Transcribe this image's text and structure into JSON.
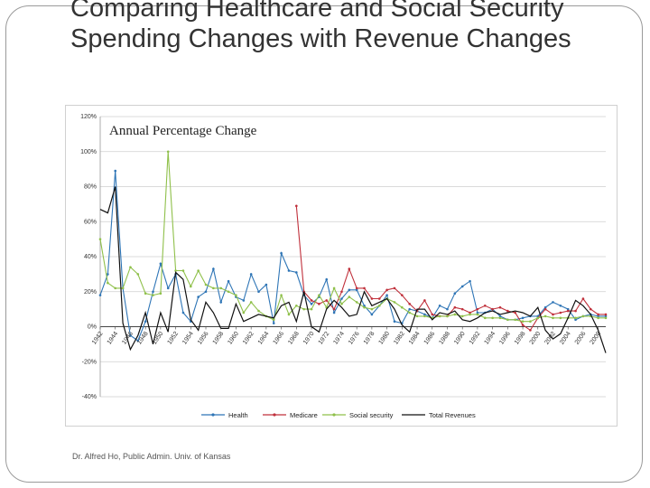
{
  "slide": {
    "title": "Comparing Healthcare and Social Security Spending Changes with Revenue Changes",
    "footer": "Dr. Alfred Ho, Public Admin. Univ. of Kansas"
  },
  "chart_data": {
    "type": "line",
    "title": "Annual Percentage Change",
    "xlabel": "",
    "ylabel": "",
    "ylim": [
      -40,
      120
    ],
    "yticks": [
      120,
      100,
      80,
      60,
      40,
      20,
      0,
      -20,
      -40
    ],
    "ytick_labels": [
      "120%",
      "100%",
      "80%",
      "60%",
      "40%",
      "20%",
      "0%",
      "-20%",
      "-40%"
    ],
    "xrange": [
      1942,
      2009
    ],
    "xtick_labels": [
      "1942",
      "1944",
      "1946",
      "1948",
      "1950",
      "1952",
      "1954",
      "1956",
      "1958",
      "1960",
      "1962",
      "1964",
      "1966",
      "1968",
      "1970",
      "1972",
      "1974",
      "1976",
      "1978",
      "1980",
      "1982",
      "1984",
      "1986",
      "1988",
      "1990",
      "1992",
      "1994",
      "1996",
      "1998",
      "2000",
      "2002",
      "2004",
      "2006",
      "2008"
    ],
    "legend_position": "bottom",
    "grid": true,
    "series": [
      {
        "name": "Health",
        "color": "#2e75b6",
        "points": [
          [
            1942,
            18
          ],
          [
            1943,
            30
          ],
          [
            1944,
            89
          ],
          [
            1945,
            22
          ],
          [
            1946,
            -5
          ],
          [
            1947,
            -8
          ],
          [
            1948,
            3
          ],
          [
            1949,
            20
          ],
          [
            1950,
            36
          ],
          [
            1951,
            22
          ],
          [
            1952,
            30
          ],
          [
            1953,
            8
          ],
          [
            1954,
            3
          ],
          [
            1955,
            17
          ],
          [
            1956,
            20
          ],
          [
            1957,
            33
          ],
          [
            1958,
            14
          ],
          [
            1959,
            26
          ],
          [
            1960,
            17
          ],
          [
            1961,
            15
          ],
          [
            1962,
            30
          ],
          [
            1963,
            20
          ],
          [
            1964,
            24
          ],
          [
            1965,
            2
          ],
          [
            1966,
            42
          ],
          [
            1967,
            32
          ],
          [
            1968,
            31
          ],
          [
            1969,
            18
          ],
          [
            1970,
            13
          ],
          [
            1971,
            17
          ],
          [
            1972,
            27
          ],
          [
            1973,
            8
          ],
          [
            1974,
            16
          ],
          [
            1975,
            21
          ],
          [
            1976,
            21
          ],
          [
            1977,
            12
          ],
          [
            1978,
            7
          ],
          [
            1979,
            12
          ],
          [
            1980,
            18
          ],
          [
            1981,
            3
          ],
          [
            1982,
            2
          ],
          [
            1983,
            10
          ],
          [
            1984,
            9
          ],
          [
            1985,
            7
          ],
          [
            1986,
            5
          ],
          [
            1987,
            12
          ],
          [
            1988,
            10
          ],
          [
            1989,
            19
          ],
          [
            1990,
            23
          ],
          [
            1991,
            26
          ],
          [
            1992,
            8
          ],
          [
            1993,
            8
          ],
          [
            1994,
            10
          ],
          [
            1995,
            6
          ],
          [
            1996,
            4
          ],
          [
            1997,
            4
          ],
          [
            1998,
            5
          ],
          [
            1999,
            6
          ],
          [
            2000,
            6
          ],
          [
            2001,
            11
          ],
          [
            2002,
            14
          ],
          [
            2003,
            12
          ],
          [
            2004,
            10
          ],
          [
            2005,
            4
          ],
          [
            2006,
            6
          ],
          [
            2007,
            7
          ],
          [
            2008,
            6
          ],
          [
            2009,
            6
          ]
        ]
      },
      {
        "name": "Medicare",
        "color": "#c0303b",
        "points": [
          [
            1968,
            69
          ],
          [
            1969,
            20
          ],
          [
            1970,
            15
          ],
          [
            1971,
            13
          ],
          [
            1972,
            15
          ],
          [
            1973,
            10
          ],
          [
            1974,
            20
          ],
          [
            1975,
            33
          ],
          [
            1976,
            22
          ],
          [
            1977,
            22
          ],
          [
            1978,
            16
          ],
          [
            1979,
            16
          ],
          [
            1980,
            21
          ],
          [
            1981,
            22
          ],
          [
            1982,
            18
          ],
          [
            1983,
            13
          ],
          [
            1984,
            9
          ],
          [
            1985,
            15
          ],
          [
            1986,
            7
          ],
          [
            1987,
            6
          ],
          [
            1988,
            6
          ],
          [
            1989,
            11
          ],
          [
            1990,
            10
          ],
          [
            1991,
            8
          ],
          [
            1992,
            10
          ],
          [
            1993,
            12
          ],
          [
            1994,
            10
          ],
          [
            1995,
            11
          ],
          [
            1996,
            9
          ],
          [
            1997,
            8
          ],
          [
            1998,
            1
          ],
          [
            1999,
            -2
          ],
          [
            2000,
            5
          ],
          [
            2001,
            10
          ],
          [
            2002,
            7
          ],
          [
            2003,
            8
          ],
          [
            2004,
            9
          ],
          [
            2005,
            9
          ],
          [
            2006,
            16
          ],
          [
            2007,
            10
          ],
          [
            2008,
            7
          ],
          [
            2009,
            7
          ]
        ]
      },
      {
        "name": "Social security",
        "color": "#8fc04a",
        "points": [
          [
            1942,
            50
          ],
          [
            1943,
            25
          ],
          [
            1944,
            22
          ],
          [
            1945,
            22
          ],
          [
            1946,
            34
          ],
          [
            1947,
            30
          ],
          [
            1948,
            19
          ],
          [
            1949,
            18
          ],
          [
            1950,
            19
          ],
          [
            1951,
            100
          ],
          [
            1952,
            32
          ],
          [
            1953,
            32
          ],
          [
            1954,
            23
          ],
          [
            1955,
            32
          ],
          [
            1956,
            24
          ],
          [
            1957,
            22
          ],
          [
            1958,
            22
          ],
          [
            1959,
            20
          ],
          [
            1960,
            18
          ],
          [
            1961,
            8
          ],
          [
            1962,
            14
          ],
          [
            1963,
            9
          ],
          [
            1964,
            6
          ],
          [
            1965,
            4
          ],
          [
            1966,
            18
          ],
          [
            1967,
            7
          ],
          [
            1968,
            12
          ],
          [
            1969,
            10
          ],
          [
            1970,
            10
          ],
          [
            1971,
            18
          ],
          [
            1972,
            11
          ],
          [
            1973,
            22
          ],
          [
            1974,
            13
          ],
          [
            1975,
            17
          ],
          [
            1976,
            14
          ],
          [
            1977,
            11
          ],
          [
            1978,
            10
          ],
          [
            1979,
            12
          ],
          [
            1980,
            16
          ],
          [
            1981,
            14
          ],
          [
            1982,
            11
          ],
          [
            1983,
            8
          ],
          [
            1984,
            6
          ],
          [
            1985,
            6
          ],
          [
            1986,
            5
          ],
          [
            1987,
            6
          ],
          [
            1988,
            6
          ],
          [
            1989,
            7
          ],
          [
            1990,
            6
          ],
          [
            1991,
            7
          ],
          [
            1992,
            7
          ],
          [
            1993,
            5
          ],
          [
            1994,
            5
          ],
          [
            1995,
            5
          ],
          [
            1996,
            4
          ],
          [
            1997,
            4
          ],
          [
            1998,
            3
          ],
          [
            1999,
            3
          ],
          [
            2000,
            5
          ],
          [
            2001,
            6
          ],
          [
            2002,
            5
          ],
          [
            2003,
            5
          ],
          [
            2004,
            5
          ],
          [
            2005,
            5
          ],
          [
            2006,
            6
          ],
          [
            2007,
            6
          ],
          [
            2008,
            5
          ],
          [
            2009,
            5
          ]
        ]
      },
      {
        "name": "Total Revenues",
        "color": "#111111",
        "points": [
          [
            1942,
            67
          ],
          [
            1943,
            65
          ],
          [
            1944,
            80
          ],
          [
            1945,
            2
          ],
          [
            1946,
            -13
          ],
          [
            1947,
            -5
          ],
          [
            1948,
            8
          ],
          [
            1949,
            -10
          ],
          [
            1950,
            8
          ],
          [
            1951,
            -3
          ],
          [
            1952,
            31
          ],
          [
            1953,
            27
          ],
          [
            1954,
            4
          ],
          [
            1955,
            -2
          ],
          [
            1956,
            14
          ],
          [
            1957,
            8
          ],
          [
            1958,
            -1
          ],
          [
            1959,
            -1
          ],
          [
            1960,
            13
          ],
          [
            1961,
            3
          ],
          [
            1962,
            5
          ],
          [
            1963,
            7
          ],
          [
            1964,
            6
          ],
          [
            1965,
            5
          ],
          [
            1966,
            12
          ],
          [
            1967,
            14
          ],
          [
            1968,
            3
          ],
          [
            1969,
            20
          ],
          [
            1970,
            0
          ],
          [
            1971,
            -3
          ],
          [
            1972,
            10
          ],
          [
            1973,
            15
          ],
          [
            1974,
            11
          ],
          [
            1975,
            6
          ],
          [
            1976,
            7
          ],
          [
            1977,
            20
          ],
          [
            1978,
            12
          ],
          [
            1979,
            14
          ],
          [
            1980,
            16
          ],
          [
            1981,
            10
          ],
          [
            1982,
            1
          ],
          [
            1983,
            -3
          ],
          [
            1984,
            10
          ],
          [
            1985,
            10
          ],
          [
            1986,
            4
          ],
          [
            1987,
            8
          ],
          [
            1988,
            7
          ],
          [
            1989,
            9
          ],
          [
            1990,
            4
          ],
          [
            1991,
            3
          ],
          [
            1992,
            5
          ],
          [
            1993,
            8
          ],
          [
            1994,
            9
          ],
          [
            1995,
            7
          ],
          [
            1996,
            8
          ],
          [
            1997,
            9
          ],
          [
            1998,
            8
          ],
          [
            1999,
            6
          ],
          [
            2000,
            11
          ],
          [
            2001,
            -2
          ],
          [
            2002,
            -7
          ],
          [
            2003,
            -4
          ],
          [
            2004,
            5
          ],
          [
            2005,
            15
          ],
          [
            2006,
            12
          ],
          [
            2007,
            7
          ],
          [
            2008,
            -2
          ],
          [
            2009,
            -15
          ]
        ]
      }
    ]
  }
}
